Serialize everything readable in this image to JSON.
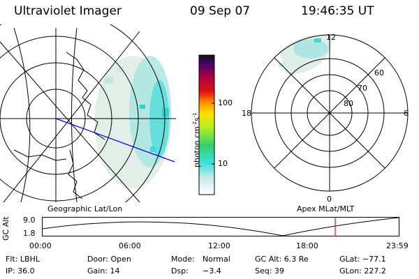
{
  "header": {
    "title": "Ultraviolet Imager",
    "date": "09 Sep 07",
    "time": "19:46:35 UT"
  },
  "colorbar": {
    "label_prefix": "photon cm",
    "label_exp1": "-2",
    "label_mid": "s",
    "label_exp2": "-1",
    "ticks": [
      "100",
      "10"
    ]
  },
  "left_map": {
    "caption": "Geographic Lat/Lon"
  },
  "right_map": {
    "caption": "Apex MLat/MLT",
    "mlt_labels": {
      "top": "12",
      "left": "18",
      "right": "6",
      "bottom": "0"
    },
    "lat_labels": [
      "60",
      "70",
      "80"
    ]
  },
  "altitude_plot": {
    "ylabel": "GC Alt",
    "yticks": [
      "9.0",
      "1.8"
    ],
    "xticks": [
      "00:00",
      "06:00",
      "12:00",
      "18:00",
      "23:59"
    ]
  },
  "footer": {
    "row1": {
      "flt": "Flt: LBHL",
      "door": "Door: Open",
      "mode_label": "Mode:",
      "mode_value": "Normal",
      "gcalt": "GC Alt: 6.3 Re",
      "glat": "GLat: −77.1"
    },
    "row2": {
      "ip": "IP: 36.0",
      "gain": "Gain: 14",
      "dsp_label": "Dsp:",
      "dsp_value": "−3.4",
      "seq": "Seq: 39",
      "glon": "GLon: 227.2"
    }
  },
  "colors": {
    "aurora_cyan": "#40e0e0",
    "aurora_light": "#d8efe8",
    "line_blue": "#0000ff",
    "marker_red": "#ff0000"
  }
}
